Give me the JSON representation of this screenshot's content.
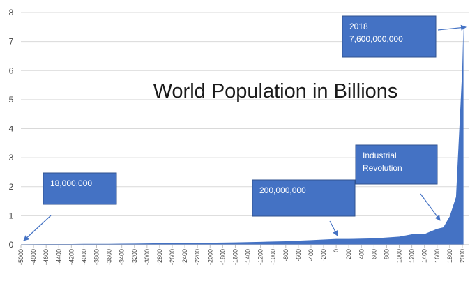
{
  "chart_data": {
    "type": "area",
    "title": "World Population in Billions",
    "xlabel": "",
    "ylabel": "",
    "ylim": [
      0,
      8
    ],
    "xlim": [
      -5000,
      2100
    ],
    "grid": true,
    "legend": "none",
    "colors": {
      "area": "#4472C4",
      "box": "#4472C4",
      "grid": "#d9d9d9",
      "text": "#404040"
    },
    "y_ticks": [
      "0",
      "1",
      "2",
      "3",
      "4",
      "5",
      "6",
      "7",
      "8"
    ],
    "x_ticks": [
      "-5000",
      "-4800",
      "-4600",
      "-4400",
      "-4200",
      "-4000",
      "-3800",
      "-3600",
      "-3400",
      "-3200",
      "-3000",
      "-2800",
      "-2600",
      "-2400",
      "-2200",
      "-2000",
      "-1800",
      "-1600",
      "-1400",
      "-1200",
      "-1000",
      "-800",
      "-600",
      "-400",
      "-200",
      "0",
      "200",
      "400",
      "600",
      "800",
      "1000",
      "1200",
      "1400",
      "1600",
      "1800",
      "2000"
    ],
    "x": [
      -5000,
      -4800,
      -4600,
      -4400,
      -4200,
      -4000,
      -3800,
      -3600,
      -3400,
      -3200,
      -3000,
      -2800,
      -2600,
      -2400,
      -2200,
      -2000,
      -1800,
      -1600,
      -1400,
      -1200,
      -1000,
      -800,
      -600,
      -400,
      -200,
      0,
      200,
      400,
      600,
      800,
      1000,
      1200,
      1400,
      1600,
      1700,
      1800,
      1900,
      2000,
      2018
    ],
    "values": [
      0.018,
      0.02,
      0.025,
      0.025,
      0.025,
      0.03,
      0.03,
      0.03,
      0.035,
      0.04,
      0.045,
      0.05,
      0.05,
      0.055,
      0.06,
      0.07,
      0.075,
      0.08,
      0.09,
      0.1,
      0.11,
      0.12,
      0.14,
      0.16,
      0.18,
      0.2,
      0.2,
      0.21,
      0.22,
      0.25,
      0.28,
      0.36,
      0.37,
      0.55,
      0.6,
      0.98,
      1.65,
      6.1,
      7.6
    ],
    "annotations": [
      {
        "line1": "18,000,000",
        "line2": ""
      },
      {
        "line1": "200,000,000",
        "line2": ""
      },
      {
        "line1": "Industrial",
        "line2": "Revolution"
      },
      {
        "line1": "2018",
        "line2": "7,600,000,000"
      }
    ]
  }
}
